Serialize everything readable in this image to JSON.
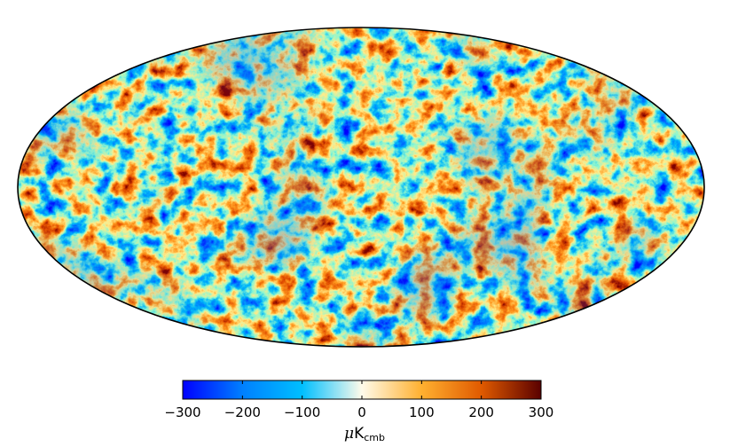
{
  "map": {
    "projection": "mollweide",
    "field": "cmb-temperature-anisotropy"
  },
  "colorbar": {
    "min": -300,
    "max": 300,
    "ticks": [
      "−300",
      "−200",
      "−100",
      "0",
      "100",
      "200",
      "300"
    ],
    "unit_symbol": "μ",
    "unit_base": "K",
    "unit_sub": "cmb",
    "colors": [
      "#0000ff",
      "#0080ff",
      "#00bfff",
      "#fffbea",
      "#ffb030",
      "#e05a00",
      "#5a0000"
    ]
  }
}
